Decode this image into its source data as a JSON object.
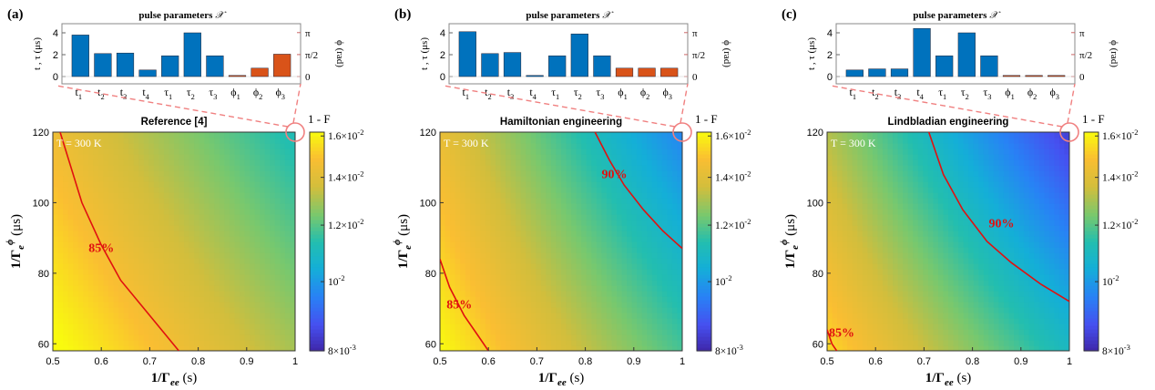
{
  "figure": {
    "shared": {
      "bar_title": "pulse parameters",
      "bar_title_symbol": "𝒳",
      "bar_ylabel_left": "t , τ (μs)",
      "bar_ylabel_right": "ϕ (rad)",
      "bar_left_ticks": [
        "0",
        "2",
        "4"
      ],
      "bar_right_ticks": [
        "0",
        "π/2",
        "π"
      ],
      "bar_categories": [
        "t1",
        "t2",
        "t3",
        "t4",
        "τ1",
        "τ2",
        "τ3",
        "ϕ1",
        "ϕ2",
        "ϕ3"
      ],
      "colorbar_label": "1 - F",
      "colorbar_ticks": [
        "8×10-3",
        "10-2",
        "1.2×10-2",
        "1.4×10-2",
        "1.6×10-2"
      ],
      "temperature_label": "T = 300 K",
      "map_xlabel": "1/Γee (s)",
      "map_ylabel": "1/Γeϕ (μs)",
      "map_xticks": [
        "0.5",
        "0.6",
        "0.7",
        "0.8",
        "0.9",
        "1"
      ],
      "map_yticks": [
        "60",
        "80",
        "100",
        "120"
      ],
      "colors": {
        "time_bar": "#0072BD",
        "phase_bar": "#D95319",
        "contour": "#E01010",
        "zoom_line": "#F08080"
      }
    }
  },
  "chart_data": [
    {
      "type": "heatmap",
      "panel_label": "(a)",
      "title": "Reference [4]",
      "bars": {
        "times_us": [
          3.8,
          2.1,
          2.15,
          0.6,
          1.9,
          4.0,
          1.9
        ],
        "phases_rad": [
          0.0,
          0.6,
          1.6
        ]
      },
      "xlim": [
        0.5,
        1.0
      ],
      "ylim": [
        58,
        120
      ],
      "colorbar_range": [
        0.008,
        0.0162
      ],
      "corners_1mF": {
        "x0y0": 0.0164,
        "x1y0": 0.013,
        "x0y1": 0.0145,
        "x1y1": 0.0112
      },
      "contours": [
        {
          "label": "85%",
          "label_at": [
            0.6,
            86
          ],
          "points": [
            [
              0.515,
              120
            ],
            [
              0.56,
              100
            ],
            [
              0.6,
              88
            ],
            [
              0.64,
              78
            ],
            [
              0.7,
              68
            ],
            [
              0.76,
              58
            ]
          ]
        }
      ]
    },
    {
      "type": "heatmap",
      "panel_label": "(b)",
      "title": "Hamiltonian engineering",
      "bars": {
        "times_us": [
          4.1,
          2.1,
          2.2,
          0.1,
          1.9,
          3.9,
          1.9
        ],
        "phases_rad": [
          0.6,
          0.6,
          0.6
        ]
      },
      "xlim": [
        0.5,
        1.0
      ],
      "ylim": [
        58,
        120
      ],
      "colorbar_range": [
        0.008,
        0.0162
      ],
      "corners_1mF": {
        "x0y0": 0.0162,
        "x1y0": 0.0118,
        "x0y1": 0.0143,
        "x1y1": 0.0096
      },
      "contours": [
        {
          "label": "90%",
          "label_at": [
            0.86,
            107
          ],
          "points": [
            [
              0.82,
              120
            ],
            [
              0.85,
              112
            ],
            [
              0.88,
              105
            ],
            [
              0.92,
              98
            ],
            [
              0.96,
              92
            ],
            [
              1.0,
              87
            ]
          ]
        },
        {
          "label": "85%",
          "label_at": [
            0.54,
            70
          ],
          "points": [
            [
              0.5,
              84
            ],
            [
              0.52,
              76
            ],
            [
              0.55,
              68
            ],
            [
              0.58,
              62
            ],
            [
              0.6,
              58
            ]
          ]
        }
      ]
    },
    {
      "type": "heatmap",
      "panel_label": "(c)",
      "title": "Lindbladian engineering",
      "bars": {
        "times_us": [
          0.6,
          0.7,
          0.7,
          4.4,
          1.9,
          4.0,
          1.9
        ],
        "phases_rad": [
          0.0,
          0.0,
          0.0
        ]
      },
      "xlim": [
        0.5,
        1.0
      ],
      "ylim": [
        58,
        120
      ],
      "colorbar_range": [
        0.008,
        0.0162
      ],
      "corners_1mF": {
        "x0y0": 0.0155,
        "x1y0": 0.011,
        "x0y1": 0.0132,
        "x1y1": 0.0084
      },
      "contours": [
        {
          "label": "90%",
          "label_at": [
            0.86,
            93
          ],
          "points": [
            [
              0.71,
              120
            ],
            [
              0.74,
              108
            ],
            [
              0.78,
              98
            ],
            [
              0.83,
              89
            ],
            [
              0.88,
              83
            ],
            [
              0.94,
              77
            ],
            [
              1.0,
              72
            ]
          ]
        },
        {
          "label": "85%",
          "label_at": [
            0.53,
            62
          ],
          "points": [
            [
              0.5,
              64
            ],
            [
              0.51,
              60
            ],
            [
              0.52,
              58
            ]
          ]
        }
      ]
    }
  ]
}
